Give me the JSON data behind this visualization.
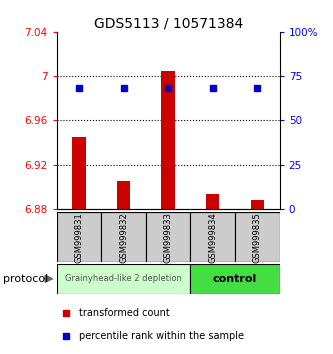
{
  "title": "GDS5113 / 10571384",
  "samples": [
    "GSM999831",
    "GSM999832",
    "GSM999833",
    "GSM999834",
    "GSM999835"
  ],
  "bar_values": [
    6.945,
    6.905,
    7.005,
    6.893,
    6.888
  ],
  "bar_base": 6.88,
  "percentile_values": [
    68,
    68,
    68,
    68,
    68
  ],
  "ylim": [
    6.88,
    7.04
  ],
  "ylim_right": [
    0,
    100
  ],
  "yticks_left": [
    6.88,
    6.92,
    6.96,
    7.0,
    7.04
  ],
  "yticks_right": [
    0,
    25,
    50,
    75,
    100
  ],
  "ytick_labels_left": [
    "6.88",
    "6.92",
    "6.96",
    "7",
    "7.04"
  ],
  "ytick_labels_right": [
    "0",
    "25",
    "50",
    "75",
    "100%"
  ],
  "hlines": [
    6.92,
    6.96,
    7.0
  ],
  "bar_color": "#cc0000",
  "dot_color": "#0000cc",
  "group1_label": "Grainyhead-like 2 depletion",
  "group2_label": "control",
  "group1_color": "#ccffcc",
  "group2_color": "#44dd44",
  "group1_count": 3,
  "group2_count": 2,
  "protocol_label": "protocol",
  "legend_bar_label": "transformed count",
  "legend_dot_label": "percentile rank within the sample",
  "sample_box_color": "#cccccc",
  "background_color": "#ffffff",
  "bar_width": 0.3
}
